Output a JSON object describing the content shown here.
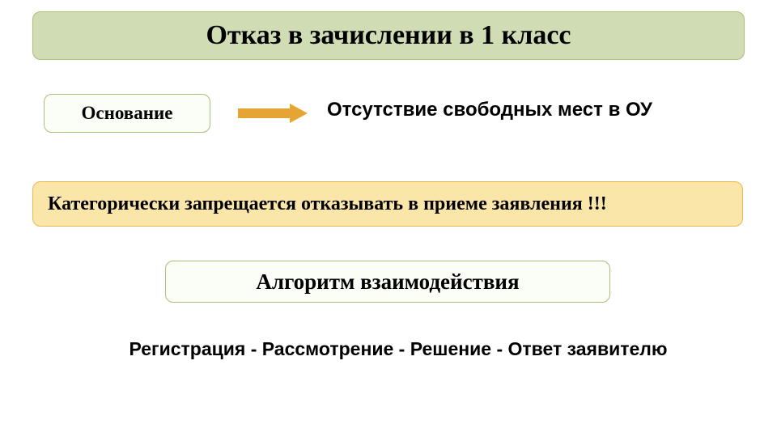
{
  "colors": {
    "title_bg": "#cfdcb4",
    "title_border": "#a9bf7b",
    "box_bg": "#fbfdf7",
    "box_border": "#a9bf7b",
    "warning_bg": "#fbe6aa",
    "warning_border": "#eeb752",
    "arrow": "#e6a532",
    "text": "#000000",
    "page_bg": "#ffffff"
  },
  "title": {
    "text": "Отказ в зачислении в 1 класс",
    "fontsize": 34,
    "border_width": 1.5,
    "border_radius": 10
  },
  "basis": {
    "label": "Основание",
    "fontsize": 23,
    "border_width": 1.5
  },
  "arrow": {
    "shaft_height": 12,
    "head_width": 22,
    "head_height": 24,
    "total_width": 86
  },
  "reason": {
    "text": "Отсутствие свободных мест в ОУ",
    "fontsize": 24
  },
  "prohibition": {
    "text": "Категорически запрещается отказывать в приеме заявления !!!",
    "fontsize": 24,
    "border_width": 1.5
  },
  "algorithm": {
    "text": "Алгоритм взаимодействия",
    "fontsize": 27,
    "border_width": 1.5
  },
  "sequence": {
    "text": "Регистрация  -  Рассмотрение  -  Решение  -  Ответ заявителю",
    "fontsize": 23
  }
}
